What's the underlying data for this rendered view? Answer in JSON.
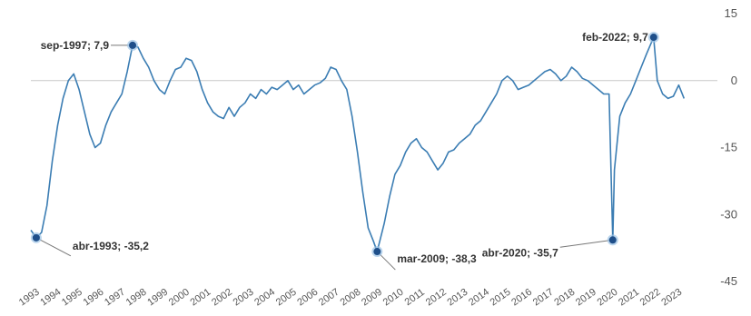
{
  "chart_data": {
    "type": "line",
    "title": "",
    "xlabel": "",
    "ylabel": "",
    "x_range": [
      1993.0,
      2023.7
    ],
    "ylim": [
      -45,
      15
    ],
    "y_ticks": [
      "15",
      "0",
      "-15",
      "-30",
      "-45"
    ],
    "y_tick_values": [
      15,
      0,
      -15,
      -30,
      -45
    ],
    "x_ticks": [
      "1993",
      "1994",
      "1995",
      "1996",
      "1997",
      "1998",
      "1999",
      "2000",
      "2001",
      "2002",
      "2003",
      "2004",
      "2005",
      "2006",
      "2007",
      "2008",
      "2009",
      "2010",
      "2011",
      "2012",
      "2013",
      "2014",
      "2015",
      "2016",
      "2017",
      "2018",
      "2019",
      "2020",
      "2021",
      "2022",
      "2023"
    ],
    "zero_line": true,
    "grid": false,
    "colors": {
      "line": "#3b7db3",
      "marker": "#1f4f8a",
      "marker_ring": "#9cc3e6",
      "zero_line": "#c8c8c8"
    },
    "series": [
      {
        "x": [
          1993.0,
          1993.25,
          1993.5,
          1993.75,
          1994.0,
          1994.25,
          1994.5,
          1994.75,
          1995.0,
          1995.25,
          1995.5,
          1995.75,
          1996.0,
          1996.25,
          1996.5,
          1996.75,
          1997.0,
          1997.25,
          1997.5,
          1997.75,
          1998.0,
          1998.25,
          1998.5,
          1998.75,
          1999.0,
          1999.25,
          1999.5,
          1999.75,
          2000.0,
          2000.25,
          2000.5,
          2000.75,
          2001.0,
          2001.25,
          2001.5,
          2001.75,
          2002.0,
          2002.25,
          2002.5,
          2002.75,
          2003.0,
          2003.25,
          2003.5,
          2003.75,
          2004.0,
          2004.25,
          2004.5,
          2004.75,
          2005.0,
          2005.25,
          2005.5,
          2005.75,
          2006.0,
          2006.25,
          2006.5,
          2006.75,
          2007.0,
          2007.25,
          2007.5,
          2007.75,
          2008.0,
          2008.25,
          2008.5,
          2008.75,
          2009.0,
          2009.17,
          2009.5,
          2009.75,
          2010.0,
          2010.25,
          2010.5,
          2010.75,
          2011.0,
          2011.25,
          2011.5,
          2011.75,
          2012.0,
          2012.25,
          2012.5,
          2012.75,
          2013.0,
          2013.25,
          2013.5,
          2013.75,
          2014.0,
          2014.25,
          2014.5,
          2014.75,
          2015.0,
          2015.25,
          2015.5,
          2015.75,
          2016.0,
          2016.25,
          2016.5,
          2016.75,
          2017.0,
          2017.25,
          2017.5,
          2017.75,
          2018.0,
          2018.25,
          2018.5,
          2018.75,
          2019.0,
          2019.25,
          2019.5,
          2019.75,
          2020.0,
          2020.17,
          2020.25,
          2020.5,
          2020.75,
          2021.0,
          2021.25,
          2021.5,
          2021.75,
          2022.08,
          2022.25,
          2022.5,
          2022.75,
          2023.0,
          2023.25,
          2023.5
        ],
        "y": [
          -33.5,
          -35.2,
          -34.0,
          -28.0,
          -18.0,
          -10.0,
          -4.0,
          0.0,
          1.5,
          -2.0,
          -7.0,
          -12.0,
          -15.0,
          -14.0,
          -10.0,
          -7.0,
          -5.0,
          -3.0,
          2.0,
          7.9,
          7.5,
          5.0,
          3.0,
          0.0,
          -2.0,
          -3.0,
          0.0,
          2.5,
          3.0,
          5.0,
          4.5,
          2.0,
          -2.0,
          -5.0,
          -7.0,
          -8.0,
          -8.5,
          -6.0,
          -8.0,
          -6.0,
          -5.0,
          -3.0,
          -4.0,
          -2.0,
          -3.0,
          -1.5,
          -2.0,
          -1.0,
          0.0,
          -2.0,
          -1.0,
          -3.0,
          -2.0,
          -1.0,
          -0.5,
          0.5,
          3.0,
          2.5,
          0.0,
          -2.0,
          -8.0,
          -16.0,
          -25.0,
          -33.0,
          -36.0,
          -38.3,
          -32.0,
          -26.0,
          -21.0,
          -19.0,
          -16.0,
          -14.0,
          -13.0,
          -15.0,
          -16.0,
          -18.0,
          -20.0,
          -18.5,
          -16.0,
          -15.5,
          -14.0,
          -13.0,
          -12.0,
          -10.0,
          -9.0,
          -7.0,
          -5.0,
          -3.0,
          0.0,
          1.0,
          0.0,
          -2.0,
          -1.5,
          -1.0,
          0.0,
          1.0,
          2.0,
          2.5,
          1.5,
          0.0,
          1.0,
          3.0,
          2.0,
          0.5,
          0.0,
          -1.0,
          -2.0,
          -3.0,
          -3.0,
          -35.7,
          -20.0,
          -8.0,
          -5.0,
          -3.0,
          0.0,
          3.0,
          6.0,
          9.7,
          0.0,
          -3.0,
          -4.0,
          -3.5,
          -1.0,
          -4.0
        ]
      }
    ],
    "annotations": [
      {
        "label": "abr-1993; -35,2",
        "x": 1993.25,
        "y": -35.2
      },
      {
        "label": "sep-1997; 7,9",
        "x": 1997.75,
        "y": 7.9
      },
      {
        "label": "mar-2009;  -38,3",
        "x": 2009.17,
        "y": -38.3
      },
      {
        "label": "abr-2020; -35,7",
        "x": 2020.17,
        "y": -35.7
      },
      {
        "label": "feb-2022; 9,7",
        "x": 2022.08,
        "y": 9.7
      }
    ]
  }
}
